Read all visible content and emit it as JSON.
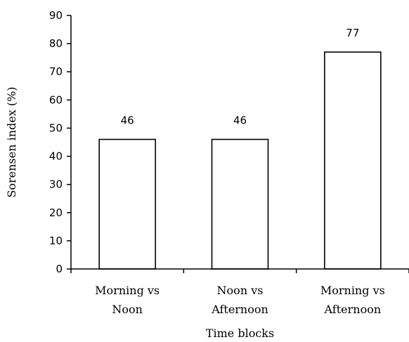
{
  "chart_data": {
    "type": "bar",
    "categories": [
      [
        "Morning vs",
        "Noon"
      ],
      [
        "Noon vs",
        "Afternoon"
      ],
      [
        "Morning vs",
        "Afternoon"
      ]
    ],
    "values": [
      46,
      46,
      77
    ],
    "data_labels": [
      "46",
      "46",
      "77"
    ],
    "xlabel": "Time blocks",
    "ylabel": "Sorensen index (%)",
    "ylim": [
      0,
      90
    ],
    "yticks": [
      0,
      10,
      20,
      30,
      40,
      50,
      60,
      70,
      80,
      90
    ],
    "bar_fill": "#ffffff",
    "bar_stroke": "#000000",
    "grid": false,
    "legend": "none"
  }
}
